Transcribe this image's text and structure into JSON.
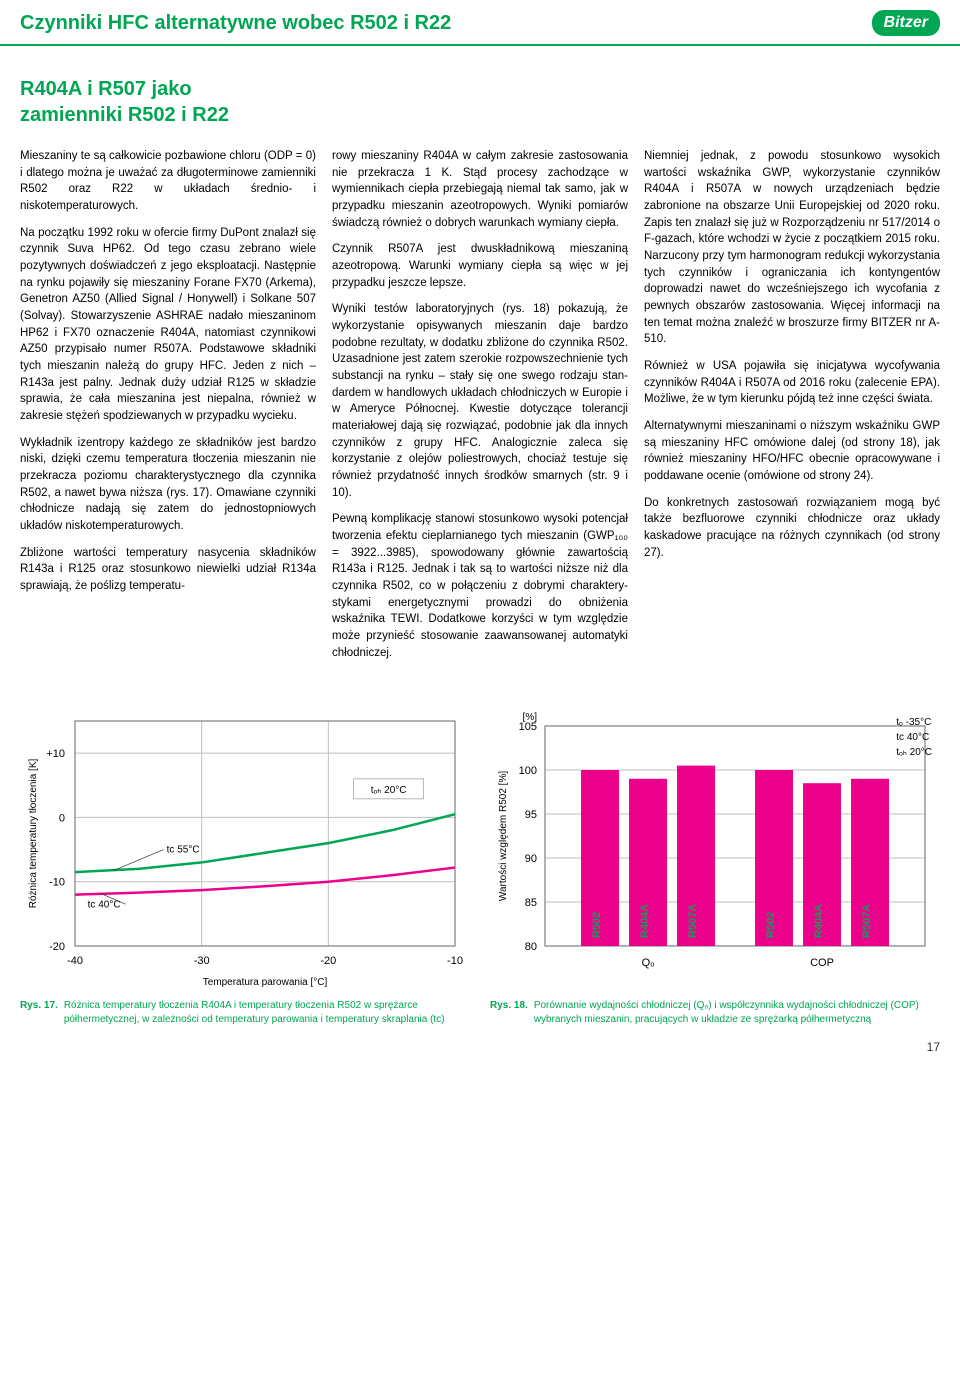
{
  "header": {
    "title": "Czynniki HFC alternatywne wobec R502 i R22",
    "logo": "Bitzer"
  },
  "section_title_line1": "R404A i R507 jako",
  "section_title_line2": "zamienniki R502 i R22",
  "col1": {
    "p1": "Mieszaniny te są całkowicie pozbawione chloru (ODP = 0) i dlatego można je uważać za długo­terminowe zamienniki R502 oraz R22 w układach średnio- i niskotemperaturowych.",
    "p2": "Na początku 1992 roku w ofercie firmy DuPont znalazł się czynnik Suva HP62. Od tego czasu zebrano wiele pozytywnych doświadczeń z jego eksploatacji. Następnie na rynku pojawiły się mieszaniny Forane FX70 (Arkema), Genetron AZ50 (Allied Signal / Honywell) i Solkane 507 (Solvay). Stowarzyszenie ASHRAE nadało mieszaninom HP62 i FX70 oznaczenie R404A, natomiast czynnikowi AZ50 przypisało numer R507A. Podstawowe składniki tych mieszanin należą do grupy HFC. Jeden z nich – R143a jest palny. Jednak duży udział R125 w składzie sprawia, że cała mieszanina jest niepalna, również w zakresie stężeń spodziewanych w przypadku wycieku.",
    "p3": "Wykładnik izentropy każdego ze składników jest bardzo niski, dzięki czemu temperatura tłoczenia mieszanin nie przekracza poziomu charakterystycznego dla czynnika R502, a nawet bywa niższa (rys. 17). Omawiane czynniki chłod­nicze nadają się zatem do jednostopniowych układów niskotemperaturowych.",
    "p4": "Zbliżone wartości temperatury nasycenia skład­ników R143a i R125 oraz stosunkowo niewielki udział R134a sprawiają, że poślizg temperatu-"
  },
  "col2": {
    "p1": "rowy mieszaniny R404A w całym zakresie zastosowania nie przekracza 1 K. Stąd procesy zachodzące w wymiennikach ciepła przebiegają niemal tak samo, jak w przypadku mieszanin azeotropowych. Wyniki pomiarów świadczą również o dobrych warunkach wymiany ciepła.",
    "p2": "Czynnik R507A jest dwuskładnikową mieszani­ną azeotropową. Warunki wymiany ciepła są więc w jej przypadku jeszcze lepsze.",
    "p3": "Wyniki testów laboratoryjnych (rys. 18) pokazują, że wykorzystanie opisywanych mieszanin daje bardzo podobne rezultaty, w dodatku zbliżone do czynnika R502. Uzasadnione jest zatem szerokie rozpowszechnienie tych substancji na rynku – stały się one swego rodzaju stan­dardem w handlowych układach chłodniczych w Europie i w Ameryce Północnej. Kwestie dotyczące tolerancji materiałowej dają się rozwiązać, podobnie jak dla innych czynników z grupy HFC. Analogicznie zaleca się korzystanie z olejów poliestrowych, chociaż testuje się również przydatność innych środków smarnych (str. 9 i 10).",
    "p4": "Pewną komplikację stanowi stosunkowo wysoki potencjał tworzenia efektu cieplarnianego tych mieszanin (GWP₁₀₀ = 3922...3985), spowodowa­ny głównie zawartością R143a i R125. Jednak i tak są to wartości niższe niż dla czynnika R502, co w połączeniu z dobrymi charaktery­stykami energetycznymi prowadzi do obniżenia wskaźnika TEWI. Dodatkowe korzyści w tym względzie może przynieść stosowanie zaawan­sowanej automatyki chłodniczej."
  },
  "col3": {
    "p1": "Niemniej jednak, z powodu stosunkowo wyso­kich wartości wskaźnika GWP, wykorzystanie czynników R404A i R507A w nowych urządze­niach będzie zabronione na obszarze Unii Europejskiej od 2020 roku. Zapis ten znalazł się już w Rozporządzeniu nr 517/2014 o F-gazach, które wchodzi w życie z początkiem 2015 roku. Narzucony przy tym harmonogram redukcji wykorzystania tych czynników i ograniczania ich kontyngentów doprowadzi nawet do wcze­śniejszego ich wycofania z pewnych obszarów zastosowania. Więcej informacji na ten temat można znaleźć w broszurze firmy BITZER nr A-510.",
    "p2": "Również w USA pojawiła się inicjatywa wyco­fywania czynników R404A i R507A od 2016 roku (zalecenie EPA). Możliwe, że w tym kierunku pójdą też inne części świata.",
    "p3": "Alternatywnymi mieszaninami o niższym wskaź­niku GWP są mieszaniny HFC omówione dalej (od strony 18), jak również mieszaniny HFO/HFC obecnie opracowywane i poddawane ocenie (omówione od strony 24).",
    "p4": "Do konkretnych zastosowań rozwiązaniem mo­gą być także bezfluorowe czynniki chłodnicze oraz układy kaskadowe pracujące na różnych czynnikach (od strony 27)."
  },
  "chart17": {
    "type": "line",
    "ylabel": "Różnica temperatury tłoczenia [K]",
    "xlabel": "Temperatura parowania [°C]",
    "xlim": [
      -40,
      -10
    ],
    "ylim": [
      -20,
      15
    ],
    "xticks": [
      -40,
      -30,
      -20,
      -10
    ],
    "yticks_labels": [
      "-20",
      "-10",
      "0",
      "+10"
    ],
    "yticks_values": [
      -20,
      -10,
      0,
      10
    ],
    "annotation_toh": "tₒₕ 20°C",
    "series": [
      {
        "label": "tₒ 55°C",
        "color": "#00a651",
        "width": 2.5,
        "points": [
          [
            -40,
            -8.5
          ],
          [
            -35,
            -8
          ],
          [
            -30,
            -7
          ],
          [
            -25,
            -5.5
          ],
          [
            -20,
            -4
          ],
          [
            -15,
            -2
          ],
          [
            -10,
            0.5
          ]
        ]
      },
      {
        "label": "tₒ 40°C",
        "color": "#ec008c",
        "width": 2.5,
        "points": [
          [
            -40,
            -12
          ],
          [
            -35,
            -11.7
          ],
          [
            -30,
            -11.3
          ],
          [
            -25,
            -10.7
          ],
          [
            -20,
            -10
          ],
          [
            -15,
            -9
          ],
          [
            -10,
            -7.8
          ]
        ]
      }
    ],
    "grid_color": "#bfbfbf",
    "background": "#ffffff",
    "label_fontsize": 10,
    "caption_label": "Rys. 17.",
    "caption_text": "Różnica temperatury tłoczenia R404A i temperatury tłoczenia R502 w sprężarce półhermetycznej, w zależności od temperatury parowania i temperatury skraplania (tc)"
  },
  "chart18": {
    "type": "bar",
    "ylabel": "Wartości względem R502 [%]",
    "y_unit_label": "[%]",
    "ylim": [
      80,
      105
    ],
    "yticks": [
      80,
      85,
      90,
      95,
      100,
      105
    ],
    "groups": [
      "Qₒ",
      "COP"
    ],
    "bar_labels": [
      "R502",
      "R404A",
      "R507A",
      "R502",
      "R404A",
      "R507A"
    ],
    "values": [
      100,
      99,
      100.5,
      100,
      98.5,
      99
    ],
    "colors": [
      "#ec008c",
      "#ec008c",
      "#ec008c",
      "#ec008c",
      "#ec008c",
      "#ec008c"
    ],
    "bar_label_color": "#00a651",
    "grid_color": "#bfbfbf",
    "background": "#ffffff",
    "conditions": [
      "tₒ  -35°C",
      "tc  40°C",
      "tₒₕ 20°C"
    ],
    "caption_label": "Rys. 18.",
    "caption_text": "Porównanie wydajności chłodniczej (Qₒ) i współczynnika wydajności chłodniczej (COP) wybranych mieszanin, pracujących w układzie ze sprężarką półhermetyczną"
  },
  "page_number": "17"
}
